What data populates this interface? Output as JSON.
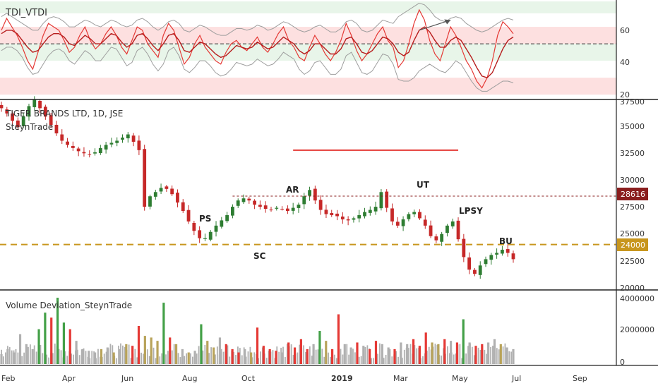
{
  "chart_data": [
    {
      "type": "line",
      "title": "TDI_VTDI",
      "y_ticks": [
        20,
        40,
        60
      ],
      "ylim": [
        18,
        75
      ],
      "colors": {
        "rsi": "#e53935",
        "signal": "#b71c1c",
        "bands": "#9e9e9e",
        "mid": "#333333",
        "arrow": "#555555"
      },
      "zones": [
        {
          "from": 68,
          "to": 75,
          "color": "#e8f5e9"
        },
        {
          "from": 50,
          "to": 60,
          "color": "#fde0e0"
        },
        {
          "from": 40,
          "to": 50,
          "color": "#e8f5e9"
        },
        {
          "from": 20,
          "to": 30,
          "color": "#fde0e0"
        }
      ],
      "midline": 50,
      "series": [
        {
          "key": "rsi",
          "values": [
            58,
            65,
            60,
            55,
            48,
            40,
            35,
            45,
            55,
            62,
            60,
            58,
            52,
            45,
            48,
            55,
            60,
            52,
            47,
            50,
            56,
            60,
            55,
            48,
            44,
            52,
            60,
            58,
            50,
            46,
            42,
            55,
            62,
            58,
            48,
            38,
            42,
            50,
            55,
            48,
            44,
            40,
            38,
            45,
            50,
            52,
            48,
            46,
            50,
            54,
            48,
            45,
            50,
            56,
            60,
            52,
            48,
            42,
            40,
            48,
            55,
            50,
            44,
            40,
            45,
            52,
            62,
            55,
            46,
            40,
            44,
            50,
            56,
            60,
            52,
            48,
            36,
            40,
            50,
            62,
            70,
            64,
            52,
            44,
            40,
            50,
            60,
            55,
            48,
            40,
            35,
            28,
            24,
            30,
            40,
            55,
            63,
            60,
            56
          ]
        },
        {
          "key": "signal",
          "values": [
            56,
            58,
            58,
            56,
            52,
            48,
            45,
            46,
            50,
            54,
            56,
            56,
            54,
            50,
            49,
            52,
            55,
            53,
            50,
            50,
            53,
            56,
            55,
            51,
            48,
            50,
            55,
            56,
            53,
            49,
            46,
            50,
            55,
            56,
            52,
            46,
            45,
            48,
            51,
            50,
            47,
            44,
            42,
            43,
            46,
            49,
            48,
            47,
            48,
            51,
            49,
            47,
            48,
            51,
            54,
            52,
            50,
            46,
            44,
            46,
            50,
            50,
            47,
            44,
            44,
            47,
            53,
            54,
            50,
            45,
            44,
            46,
            50,
            54,
            53,
            50,
            45,
            43,
            45,
            52,
            58,
            60,
            57,
            52,
            48,
            48,
            52,
            54,
            52,
            47,
            42,
            36,
            31,
            30,
            33,
            40,
            47,
            52,
            54
          ]
        },
        {
          "key": "upper",
          "values": [
            66,
            68,
            66,
            64,
            62,
            60,
            58,
            58,
            62,
            65,
            66,
            65,
            63,
            60,
            60,
            62,
            64,
            63,
            61,
            60,
            62,
            64,
            63,
            61,
            60,
            61,
            64,
            65,
            63,
            60,
            58,
            60,
            63,
            64,
            62,
            58,
            57,
            59,
            61,
            60,
            58,
            56,
            55,
            55,
            57,
            59,
            59,
            58,
            59,
            61,
            60,
            58,
            59,
            61,
            63,
            62,
            60,
            58,
            57,
            58,
            60,
            61,
            59,
            57,
            57,
            59,
            63,
            64,
            62,
            58,
            57,
            58,
            61,
            64,
            63,
            62,
            66,
            68,
            70,
            72,
            74,
            73,
            70,
            66,
            64,
            63,
            65,
            66,
            65,
            62,
            60,
            58,
            57,
            58,
            60,
            62,
            64,
            65,
            64
          ]
        },
        {
          "key": "lower",
          "values": [
            46,
            48,
            48,
            46,
            42,
            36,
            32,
            33,
            38,
            43,
            46,
            47,
            45,
            40,
            38,
            42,
            46,
            44,
            40,
            40,
            44,
            48,
            47,
            42,
            37,
            39,
            46,
            48,
            44,
            38,
            34,
            38,
            46,
            48,
            43,
            35,
            33,
            36,
            40,
            40,
            37,
            33,
            31,
            32,
            35,
            39,
            38,
            37,
            38,
            41,
            39,
            37,
            38,
            41,
            45,
            43,
            41,
            35,
            32,
            34,
            39,
            40,
            36,
            32,
            32,
            35,
            43,
            45,
            39,
            33,
            32,
            34,
            39,
            44,
            43,
            38,
            29,
            28,
            28,
            30,
            34,
            36,
            38,
            36,
            34,
            33,
            36,
            40,
            38,
            33,
            28,
            24,
            22,
            22,
            24,
            26,
            28,
            28,
            27
          ]
        }
      ],
      "arrow": {
        "from": [
          80,
          58
        ],
        "to": [
          86,
          64
        ]
      }
    },
    {
      "type": "candlestick",
      "title": "TIGER BRANDS LTD, 1D, JSE",
      "subtitle": "SteynTrade",
      "y_ticks": [
        20000,
        22500,
        25000,
        27500,
        30000,
        32500,
        35000,
        37500
      ],
      "ylim": [
        19800,
        37700
      ],
      "colors": {
        "up": "#2e7d32",
        "down": "#c62828",
        "resist": "#e53935",
        "tag_dark": "#8b1f1f",
        "tag_gold": "#c8961e"
      },
      "close": [
        37000,
        36500,
        35800,
        35200,
        36200,
        37200,
        37800,
        37000,
        36200,
        35400,
        34600,
        33900,
        33500,
        33200,
        32900,
        32700,
        32600,
        32800,
        33200,
        33500,
        33700,
        33900,
        34200,
        34500,
        33800,
        33000,
        27600,
        28600,
        29000,
        29400,
        29300,
        28800,
        28000,
        27200,
        26200,
        25300,
        24600,
        24600,
        25200,
        25800,
        26300,
        26800,
        27600,
        28200,
        28400,
        28200,
        27800,
        27600,
        27400,
        27300,
        27500,
        27400,
        27200,
        27500,
        27800,
        28600,
        29200,
        28200,
        27300,
        26900,
        26800,
        26700,
        26400,
        26300,
        26500,
        26800,
        27100,
        27300,
        27600,
        29000,
        27500,
        26200,
        25800,
        26400,
        26900,
        27100,
        26500,
        25800,
        24800,
        24400,
        25000,
        25800,
        26200,
        24500,
        22800,
        21600,
        21200,
        22000,
        22600,
        23000,
        23200,
        23500,
        23200,
        22600
      ],
      "x_labels": [
        "Feb",
        "Apr",
        "Jun",
        "Aug",
        "Oct",
        "2019",
        "Mar",
        "May",
        "Jul",
        "Sep"
      ],
      "wyckoff_labels": [
        "PS",
        "SC",
        "AR",
        "UT",
        "LPSY",
        "BU"
      ],
      "resistance": {
        "value": 33000,
        "x_from": 53,
        "x_to": 83
      },
      "dotted_level": 28616,
      "dashed_level": 24000,
      "tags": [
        "28616",
        "24000"
      ]
    },
    {
      "type": "bar",
      "title": "Volume Deviation_SteynTrade",
      "y_ticks": [
        "0",
        "2000000",
        "4000000"
      ],
      "ylim": [
        0,
        4300000
      ],
      "colors": {
        "base": "#b0b0b0",
        "red": "#e53935",
        "green": "#43a047",
        "olive": "#b8a35a"
      },
      "values": [
        600000,
        900000,
        700000,
        1800000,
        1200000,
        900000,
        2100000,
        3100000,
        2800000,
        4000000,
        2500000,
        2100000,
        1400000,
        900000,
        800000,
        700000,
        900000,
        1000000,
        700000,
        900000,
        1200000,
        1100000,
        2300000,
        1700000,
        1600000,
        1400000,
        3700000,
        1600000,
        1200000,
        900000,
        700000,
        800000,
        2400000,
        1400000,
        1000000,
        1600000,
        1200000,
        900000,
        700000,
        900000,
        700000,
        2200000,
        1100000,
        900000,
        800000,
        700000,
        1300000,
        1000000,
        1500000,
        900000,
        1200000,
        2000000,
        1400000,
        900000,
        3000000,
        1200000,
        1000000,
        1300000,
        1100000,
        900000,
        1400000,
        1200000,
        1000000,
        900000,
        1300000,
        1200000,
        1500000,
        1100000,
        1900000,
        1300000,
        1200000,
        1500000,
        1400000,
        1300000,
        2700000,
        1300000,
        1100000,
        1200000,
        1300000,
        1500000,
        1200000,
        1000000,
        900000
      ]
    }
  ]
}
